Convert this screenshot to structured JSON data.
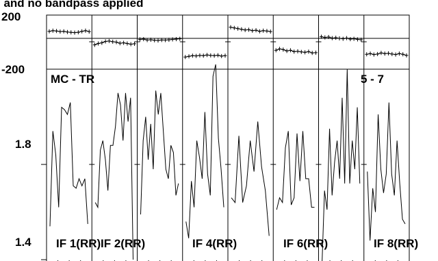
{
  "chart_data": {
    "type": "line",
    "title": "I and no bandpass applied",
    "baseline_label": "MC - TR",
    "channel_range_label": "5 - 7",
    "phase_panel": {
      "yticks": [
        "200",
        "-200"
      ],
      "ylim": [
        -200,
        200
      ]
    },
    "amp_panel": {
      "yticks": [
        {
          "label": "1.8",
          "value": 1.8
        },
        {
          "label": "1.4",
          "value": 1.4
        }
      ],
      "ylim": [
        1.38,
        2.2
      ]
    },
    "if_labels": [
      "IF 1(RR)",
      "IF 2(RR)",
      "IF 4(RR)",
      "IF 6(RR)",
      "IF 8(RR)"
    ],
    "series": [
      {
        "phase": [
          80,
          85,
          82,
          78,
          80,
          75,
          72,
          70,
          73,
          80,
          85,
          78
        ],
        "amp": [
          1.54,
          1.94,
          1.84,
          1.62,
          2.04,
          2.03,
          2.01,
          2.06,
          1.71,
          1.7,
          1.74,
          1.71,
          1.74,
          1.55
        ]
      },
      {
        "phase": [
          -20,
          -10,
          -5,
          5,
          8,
          3,
          0,
          -8,
          -5,
          -10,
          -15,
          -12
        ],
        "amp": [
          1.64,
          1.62,
          1.86,
          1.9,
          1.82,
          1.69,
          1.88,
          1.88,
          1.96,
          2.1,
          2.05,
          1.9,
          2.1,
          1.98,
          2.08,
          1.4
        ]
      },
      {
        "phase": [
          20,
          22,
          15,
          18,
          14,
          12,
          16,
          15,
          17,
          20,
          22,
          25
        ],
        "amp": [
          1.59,
          1.9,
          2.0,
          1.82,
          1.97,
          1.78,
          2.11,
          2.01,
          2.1,
          1.94,
          1.78,
          1.74,
          1.88,
          1.85,
          1.67,
          1.72
        ]
      },
      {
        "phase": [
          -110,
          -105,
          -100,
          -102,
          -98,
          -100,
          -95,
          -98,
          -100,
          -97,
          -103,
          -100
        ],
        "amp": [
          1.56,
          1.49,
          1.73,
          1.62,
          1.9,
          1.83,
          1.74,
          2.02,
          1.76,
          1.67,
          2.17,
          2.22,
          1.91,
          1.78,
          1.62
        ]
      },
      {
        "phase": [
          110,
          105,
          100,
          95,
          90,
          92,
          85,
          88,
          80,
          85,
          82,
          78
        ],
        "amp": [
          1.66,
          1.64,
          1.92,
          1.64,
          1.71,
          1.9,
          1.77,
          1.98,
          1.79,
          1.69,
          1.5
        ]
      },
      {
        "phase": [
          -60,
          -50,
          -55,
          -65,
          -60,
          -70,
          -68,
          -72,
          -75,
          -70,
          -80,
          -78
        ],
        "amp": [
          1.61,
          1.66,
          1.64,
          1.87,
          1.94,
          1.63,
          1.66,
          1.93,
          1.73,
          1.94,
          1.74,
          1.74,
          1.62,
          1.62
        ]
      },
      {
        "phase": [
          40,
          35,
          38,
          30,
          32,
          28,
          25,
          30,
          22,
          25,
          20,
          18
        ],
        "amp": [
          1.38,
          1.69,
          1.61,
          1.95,
          1.67,
          1.81,
          1.9,
          1.74,
          2.08,
          1.72,
          2.2,
          1.72,
          1.9,
          1.78,
          2.04,
          1.72
        ]
      },
      {
        "phase": [
          -90,
          -85,
          -92,
          -88,
          -80,
          -85,
          -83,
          -88,
          -92,
          -85,
          -90,
          -98
        ],
        "amp": [
          1.77,
          1.48,
          1.7,
          1.6,
          2.01,
          1.78,
          1.68,
          1.76,
          2.06,
          1.76,
          1.67,
          1.9,
          1.72,
          1.57,
          1.55
        ]
      }
    ]
  }
}
